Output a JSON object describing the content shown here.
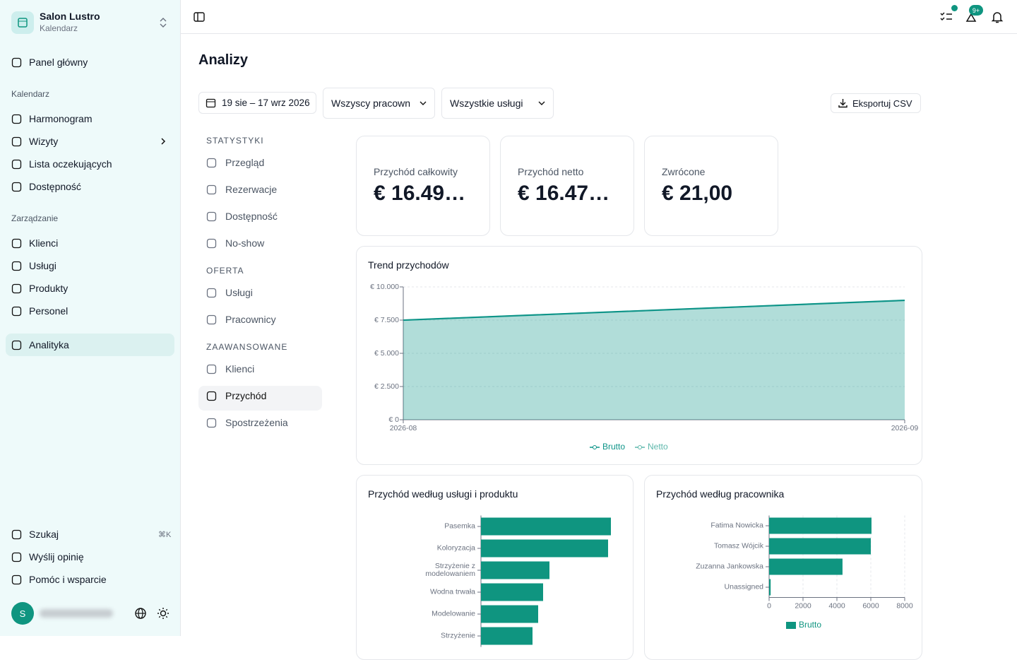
{
  "sidebar": {
    "org_name": "Salon Lustro",
    "org_sub": "Kalendarz",
    "home": "Panel główny",
    "sections": [
      {
        "title": "Kalendarz",
        "items": [
          "Harmonogram",
          "Wizyty",
          "Lista oczekujących",
          "Dostępność"
        ]
      },
      {
        "title": "Zarządzanie",
        "items": [
          "Klienci",
          "Usługi",
          "Produkty",
          "Personel"
        ]
      }
    ],
    "analytics": "Analityka",
    "footer": [
      "Szukaj",
      "Wyślij opinię",
      "Pomóc i wsparcie"
    ],
    "shortcut": "⌘K",
    "avatar": "S"
  },
  "header": {
    "badge": "9+"
  },
  "page": {
    "title": "Analizy",
    "date_range": "19 sie – 17 wrz 2026",
    "staff_filter": "Wszyscy pracown",
    "service_filter": "Wszystkie usługi",
    "export": "Eksportuj CSV"
  },
  "subnav": [
    {
      "title": "STATYSTYKI",
      "items": [
        "Przegląd",
        "Rezerwacje",
        "Dostępność",
        "No-show"
      ]
    },
    {
      "title": "OFERTA",
      "items": [
        "Usługi",
        "Pracownicy"
      ]
    },
    {
      "title": "ZAAWANSOWANE",
      "items": [
        "Klienci",
        "Przychód",
        "Spostrzeżenia"
      ]
    }
  ],
  "kpis": [
    {
      "label": "Przychód całkowity",
      "value": "€ 16.49…"
    },
    {
      "label": "Przychód netto",
      "value": "€ 16.47…"
    },
    {
      "label": "Zwrócone",
      "value": "€ 21,00"
    }
  ],
  "chart_data": [
    {
      "type": "area",
      "title": "Trend przychodów",
      "categories": [
        "2026-08",
        "2026-09"
      ],
      "series": [
        {
          "name": "Brutto",
          "color": "#0d9488",
          "values": [
            7500,
            8990
          ]
        },
        {
          "name": "Netto",
          "color": "#5eb8ac",
          "values": [
            7490,
            8980
          ]
        }
      ],
      "ylim": [
        0,
        10000
      ],
      "yticks": [
        {
          "value": 0,
          "label": "€ 0"
        },
        {
          "value": 2500,
          "label": "€ 2.500"
        },
        {
          "value": 5000,
          "label": "€ 5.000"
        },
        {
          "value": 7500,
          "label": "€ 7.500"
        },
        {
          "value": 10000,
          "label": "€ 10.000"
        }
      ],
      "grid": true
    },
    {
      "type": "hbar",
      "title": "Przychód według usługi i produktu",
      "categories": [
        "Pasemka",
        "Koloryzacja",
        "Strzyżenie z modelowaniem",
        "Wodna trwała",
        "Modelowanie",
        "Strzyżenie"
      ],
      "values": [
        3680,
        3600,
        1940,
        1760,
        1620,
        1460
      ],
      "color": "#0f9580",
      "xlim": [
        0,
        4000
      ]
    },
    {
      "type": "hbar",
      "title": "Przychód według pracownika",
      "categories": [
        "Fatima Nowicka",
        "Tomasz Wójcik",
        "Zuzanna Jankowska",
        "Unassigned"
      ],
      "series": [
        {
          "name": "Brutto",
          "color": "#0f9580",
          "values": [
            6040,
            6000,
            4330,
            90
          ]
        }
      ],
      "xlim": [
        0,
        8000
      ],
      "xticks": [
        0,
        2000,
        4000,
        6000,
        8000
      ],
      "grid": true
    }
  ]
}
